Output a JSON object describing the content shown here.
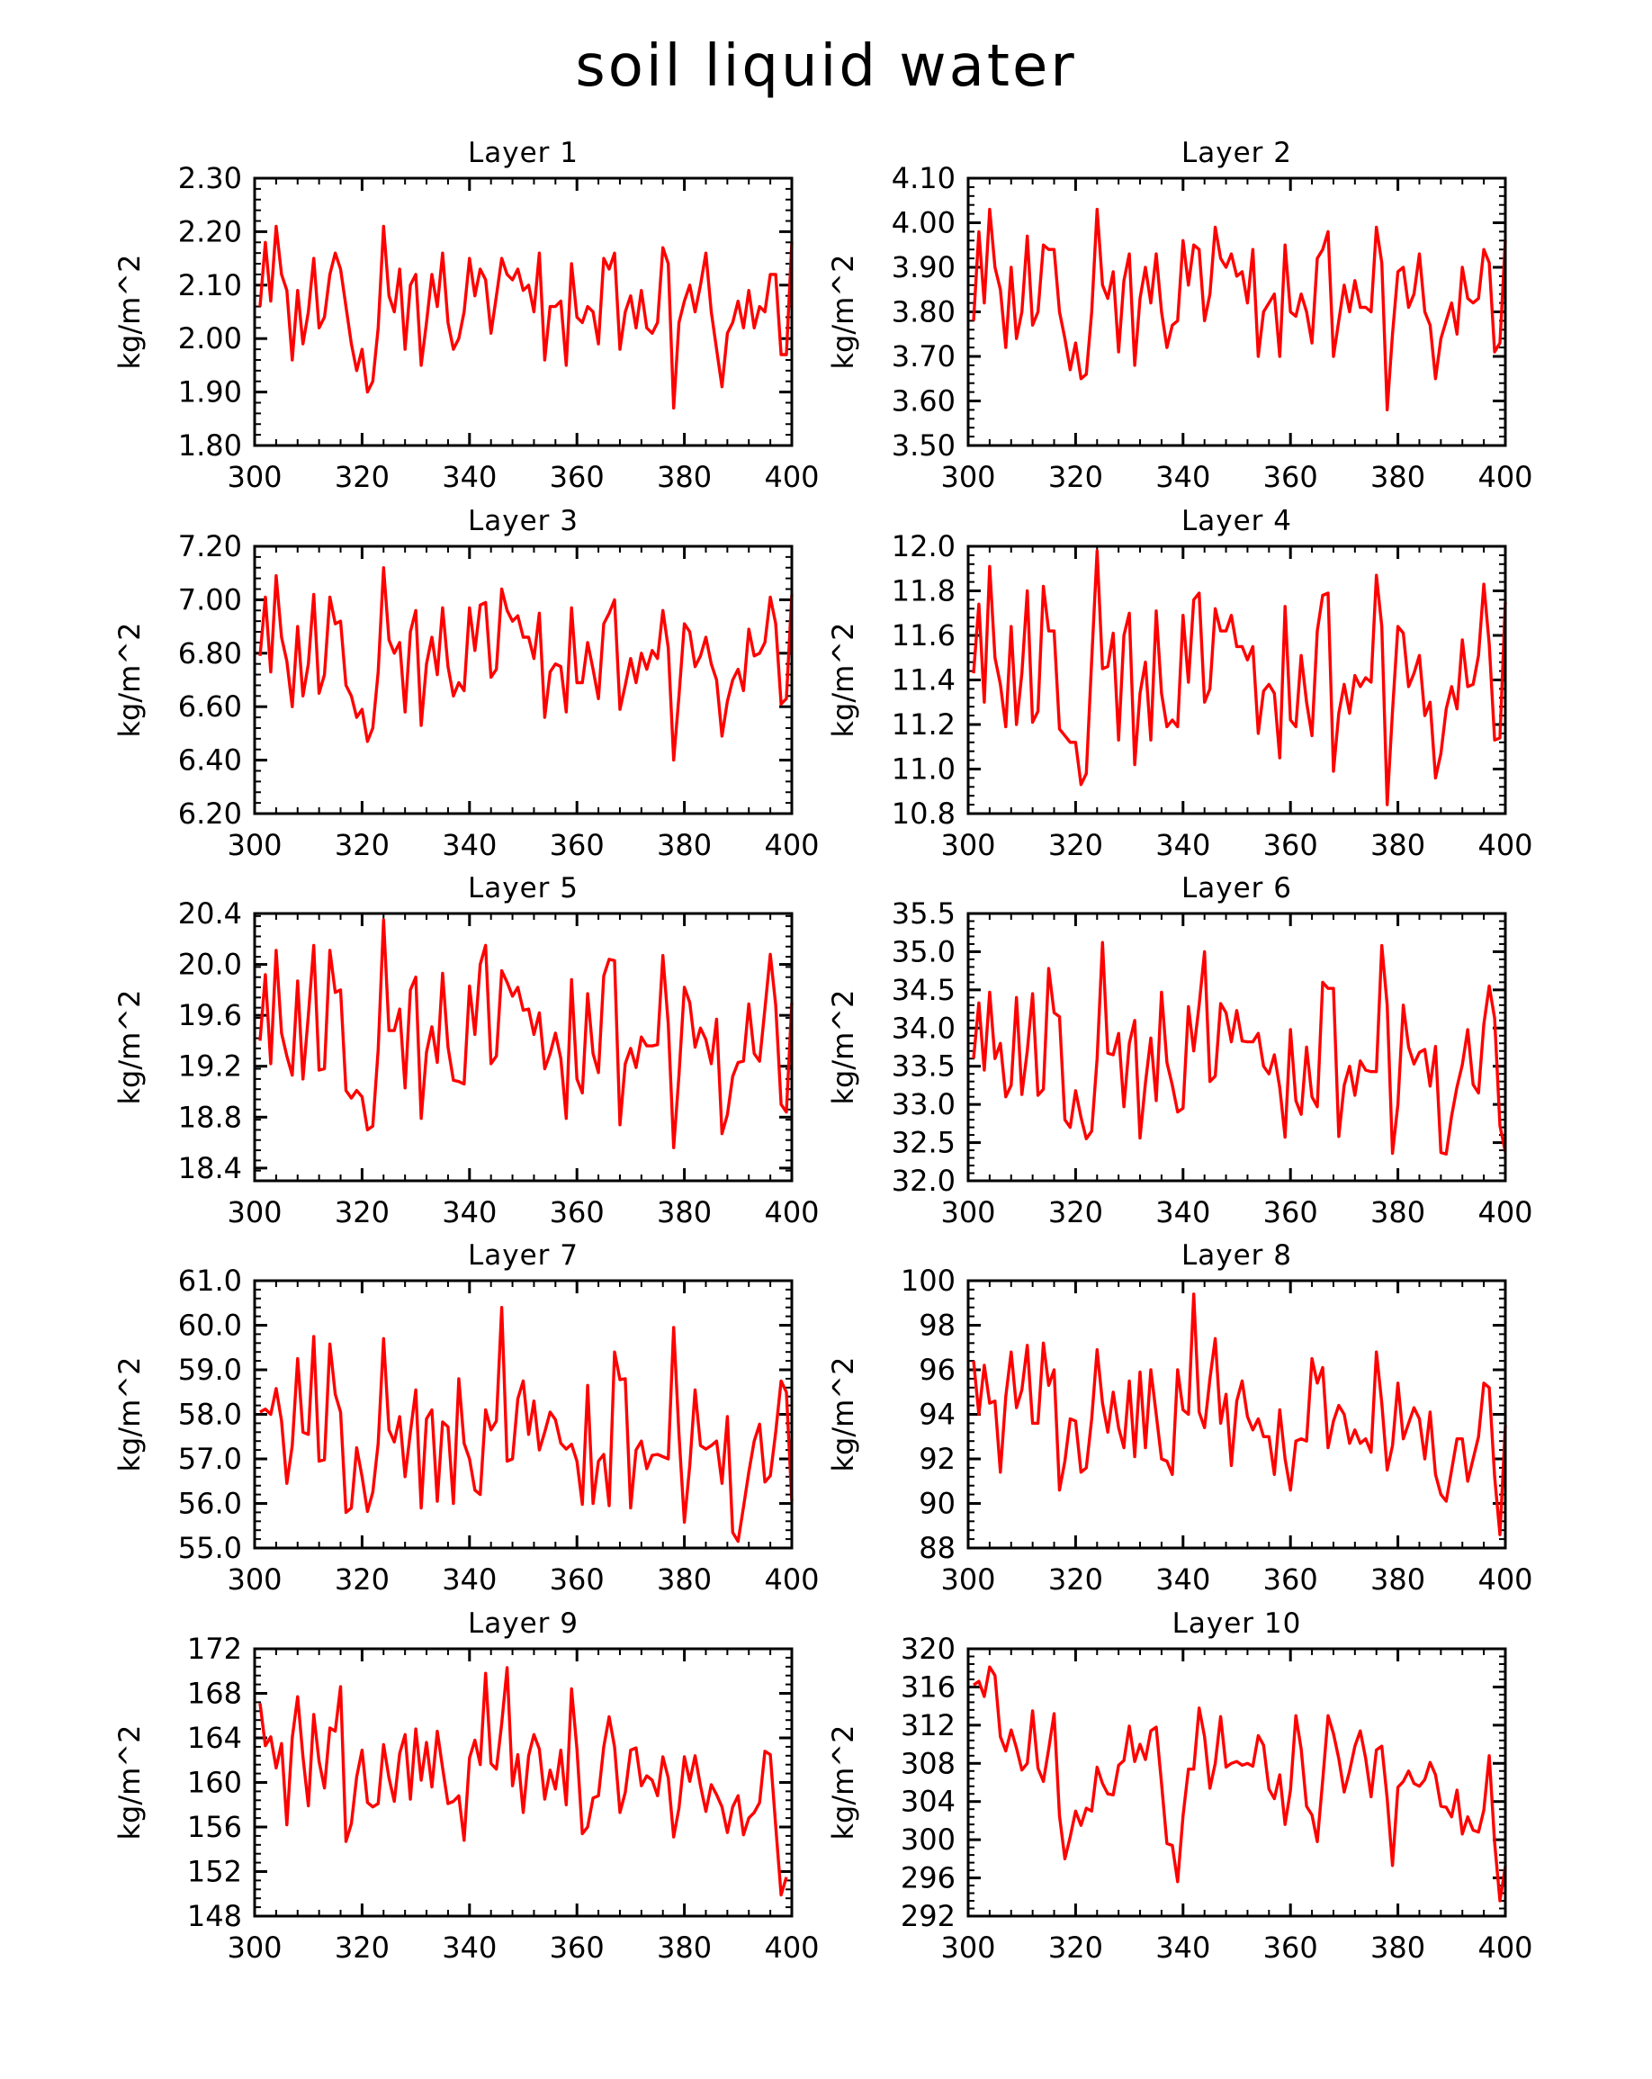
{
  "title": "soil liquid water",
  "footer": "",
  "series_color": "#ff0000",
  "chart_data": [
    {
      "type": "line",
      "title": "Layer 1",
      "ylabel": "kg/m^2",
      "xlim": [
        300,
        400
      ],
      "xticks": [
        300,
        320,
        340,
        360,
        380,
        400
      ],
      "ylim": [
        1.8,
        2.3
      ],
      "yticks": [
        "1.80",
        "1.90",
        "2.00",
        "2.10",
        "2.20",
        "2.30"
      ],
      "x_start": 301,
      "values": [
        2.06,
        2.18,
        2.07,
        2.21,
        2.12,
        2.09,
        1.96,
        2.09,
        1.99,
        2.05,
        2.15,
        2.02,
        2.04,
        2.12,
        2.16,
        2.13,
        2.06,
        1.99,
        1.94,
        1.98,
        1.9,
        1.92,
        2.02,
        2.21,
        2.08,
        2.05,
        2.13,
        1.98,
        2.1,
        2.12,
        1.95,
        2.03,
        2.12,
        2.06,
        2.16,
        2.03,
        1.98,
        2.0,
        2.05,
        2.15,
        2.08,
        2.13,
        2.11,
        2.01,
        2.08,
        2.15,
        2.12,
        2.11,
        2.13,
        2.09,
        2.1,
        2.05,
        2.16,
        1.96,
        2.06,
        2.06,
        2.07,
        1.95,
        2.14,
        2.04,
        2.03,
        2.06,
        2.05,
        1.99,
        2.15,
        2.13,
        2.16,
        1.98,
        2.05,
        2.08,
        2.02,
        2.09,
        2.02,
        2.01,
        2.03,
        2.17,
        2.14,
        1.87,
        2.03,
        2.07,
        2.1,
        2.05,
        2.1,
        2.16,
        2.05,
        1.98,
        1.91,
        2.01,
        2.03,
        2.07,
        2.02,
        2.09,
        2.02,
        2.06,
        2.05,
        2.12,
        2.12,
        1.97,
        1.97,
        2.18
      ]
    },
    {
      "type": "line",
      "title": "Layer 2",
      "ylabel": "kg/m^2",
      "xlim": [
        300,
        400
      ],
      "xticks": [
        300,
        320,
        340,
        360,
        380,
        400
      ],
      "ylim": [
        3.5,
        4.1
      ],
      "yticks": [
        "3.50",
        "3.60",
        "3.70",
        "3.80",
        "3.90",
        "4.00",
        "4.10"
      ],
      "x_start": 301,
      "values": [
        3.78,
        3.98,
        3.82,
        4.03,
        3.9,
        3.85,
        3.72,
        3.9,
        3.74,
        3.8,
        3.97,
        3.77,
        3.8,
        3.95,
        3.94,
        3.94,
        3.8,
        3.74,
        3.67,
        3.73,
        3.65,
        3.66,
        3.8,
        4.03,
        3.86,
        3.83,
        3.89,
        3.71,
        3.87,
        3.93,
        3.68,
        3.83,
        3.9,
        3.82,
        3.93,
        3.8,
        3.72,
        3.77,
        3.78,
        3.96,
        3.86,
        3.95,
        3.94,
        3.78,
        3.84,
        3.99,
        3.92,
        3.9,
        3.93,
        3.88,
        3.89,
        3.82,
        3.94,
        3.7,
        3.8,
        3.82,
        3.84,
        3.7,
        3.95,
        3.8,
        3.79,
        3.84,
        3.8,
        3.73,
        3.92,
        3.94,
        3.98,
        3.7,
        3.78,
        3.86,
        3.8,
        3.87,
        3.81,
        3.81,
        3.8,
        3.99,
        3.91,
        3.58,
        3.75,
        3.89,
        3.9,
        3.81,
        3.84,
        3.93,
        3.8,
        3.77,
        3.65,
        3.74,
        3.78,
        3.82,
        3.75,
        3.9,
        3.83,
        3.82,
        3.83,
        3.94,
        3.91,
        3.71,
        3.73,
        3.96
      ]
    },
    {
      "type": "line",
      "title": "Layer 3",
      "ylabel": "kg/m^2",
      "xlim": [
        300,
        400
      ],
      "xticks": [
        300,
        320,
        340,
        360,
        380,
        400
      ],
      "ylim": [
        6.2,
        7.2
      ],
      "yticks": [
        "6.20",
        "6.40",
        "6.60",
        "6.80",
        "7.00",
        "7.20"
      ],
      "x_start": 301,
      "values": [
        6.79,
        7.01,
        6.73,
        7.09,
        6.86,
        6.77,
        6.6,
        6.9,
        6.64,
        6.76,
        7.02,
        6.65,
        6.72,
        7.01,
        6.91,
        6.92,
        6.68,
        6.64,
        6.56,
        6.59,
        6.47,
        6.52,
        6.73,
        7.12,
        6.85,
        6.8,
        6.84,
        6.58,
        6.88,
        6.96,
        6.53,
        6.76,
        6.86,
        6.72,
        6.97,
        6.75,
        6.64,
        6.69,
        6.66,
        6.97,
        6.81,
        6.98,
        6.99,
        6.71,
        6.74,
        7.04,
        6.96,
        6.92,
        6.94,
        6.86,
        6.86,
        6.78,
        6.95,
        6.56,
        6.73,
        6.76,
        6.75,
        6.58,
        6.97,
        6.69,
        6.69,
        6.84,
        6.74,
        6.63,
        6.91,
        6.95,
        7.0,
        6.59,
        6.68,
        6.78,
        6.69,
        6.8,
        6.74,
        6.81,
        6.78,
        6.96,
        6.82,
        6.4,
        6.64,
        6.91,
        6.88,
        6.75,
        6.79,
        6.86,
        6.76,
        6.7,
        6.49,
        6.62,
        6.7,
        6.74,
        6.66,
        6.89,
        6.79,
        6.8,
        6.84,
        7.01,
        6.91,
        6.61,
        6.63,
        7.02
      ]
    },
    {
      "type": "line",
      "title": "Layer 4",
      "ylabel": "kg/m^2",
      "xlim": [
        300,
        400
      ],
      "xticks": [
        300,
        320,
        340,
        360,
        380,
        400
      ],
      "ylim": [
        10.8,
        12.0
      ],
      "yticks": [
        "10.8",
        "11.0",
        "11.2",
        "11.4",
        "11.6",
        "11.8",
        "12.0"
      ],
      "x_start": 301,
      "values": [
        11.43,
        11.74,
        11.3,
        11.91,
        11.5,
        11.38,
        11.19,
        11.64,
        11.2,
        11.43,
        11.8,
        11.21,
        11.26,
        11.82,
        11.62,
        11.62,
        11.18,
        11.15,
        11.12,
        11.12,
        10.93,
        10.98,
        11.49,
        11.98,
        11.45,
        11.46,
        11.61,
        11.13,
        11.6,
        11.7,
        11.02,
        11.34,
        11.48,
        11.13,
        11.71,
        11.34,
        11.19,
        11.22,
        11.19,
        11.69,
        11.39,
        11.76,
        11.79,
        11.3,
        11.36,
        11.72,
        11.62,
        11.62,
        11.69,
        11.55,
        11.55,
        11.49,
        11.55,
        11.16,
        11.35,
        11.38,
        11.34,
        11.05,
        11.73,
        11.22,
        11.19,
        11.51,
        11.3,
        11.15,
        11.62,
        11.78,
        11.79,
        10.99,
        11.25,
        11.38,
        11.25,
        11.42,
        11.37,
        11.41,
        11.39,
        11.87,
        11.64,
        10.84,
        11.26,
        11.64,
        11.61,
        11.37,
        11.43,
        11.51,
        11.24,
        11.3,
        10.96,
        11.07,
        11.27,
        11.37,
        11.27,
        11.58,
        11.37,
        11.38,
        11.51,
        11.83,
        11.56,
        11.13,
        11.14,
        11.75
      ]
    },
    {
      "type": "line",
      "title": "Layer 5",
      "ylabel": "kg/m^2",
      "xlim": [
        300,
        400
      ],
      "xticks": [
        300,
        320,
        340,
        360,
        380,
        400
      ],
      "ylim": [
        18.3,
        20.4
      ],
      "yticks": [
        "18.4",
        "18.8",
        "19.2",
        "19.6",
        "20.0",
        "20.4"
      ],
      "x_start": 301,
      "values": [
        19.4,
        19.92,
        19.22,
        20.11,
        19.46,
        19.28,
        19.13,
        19.87,
        19.1,
        19.6,
        20.15,
        19.17,
        19.18,
        20.11,
        19.78,
        19.8,
        19.01,
        18.95,
        19.01,
        18.96,
        18.7,
        18.73,
        19.33,
        20.35,
        19.48,
        19.48,
        19.65,
        19.03,
        19.8,
        19.9,
        18.79,
        19.31,
        19.51,
        19.23,
        19.93,
        19.35,
        19.09,
        19.08,
        19.06,
        19.83,
        19.45,
        20.0,
        20.15,
        19.22,
        19.28,
        19.95,
        19.86,
        19.75,
        19.82,
        19.64,
        19.65,
        19.45,
        19.62,
        19.18,
        19.3,
        19.46,
        19.26,
        18.79,
        19.88,
        19.1,
        18.99,
        19.77,
        19.3,
        19.15,
        19.91,
        20.04,
        20.03,
        18.74,
        19.22,
        19.34,
        19.19,
        19.43,
        19.36,
        19.36,
        19.37,
        20.07,
        19.53,
        18.56,
        19.13,
        19.82,
        19.7,
        19.35,
        19.5,
        19.41,
        19.22,
        19.57,
        18.67,
        18.82,
        19.12,
        19.23,
        19.24,
        19.69,
        19.3,
        19.24,
        19.65,
        20.08,
        19.68,
        18.9,
        18.84,
        19.7
      ]
    },
    {
      "type": "line",
      "title": "Layer 6",
      "ylabel": "kg/m^2",
      "xlim": [
        300,
        400
      ],
      "xticks": [
        300,
        320,
        340,
        360,
        380,
        400
      ],
      "ylim": [
        32.0,
        35.5
      ],
      "yticks": [
        "32.0",
        "32.5",
        "33.0",
        "33.5",
        "34.0",
        "34.5",
        "35.0",
        "35.5"
      ],
      "x_start": 301,
      "values": [
        33.6,
        34.33,
        33.45,
        34.47,
        33.6,
        33.8,
        33.1,
        33.25,
        34.4,
        33.13,
        33.7,
        34.45,
        33.12,
        33.2,
        34.78,
        34.2,
        34.15,
        32.8,
        32.7,
        33.18,
        32.83,
        32.55,
        32.65,
        33.6,
        35.12,
        33.67,
        33.65,
        33.93,
        32.97,
        33.8,
        34.1,
        32.56,
        33.28,
        33.87,
        33.05,
        34.47,
        33.55,
        33.25,
        32.9,
        32.95,
        34.28,
        33.7,
        34.3,
        35.0,
        33.3,
        33.37,
        34.32,
        34.2,
        33.82,
        34.23,
        33.83,
        33.82,
        33.82,
        33.93,
        33.5,
        33.4,
        33.65,
        33.22,
        32.57,
        33.98,
        33.05,
        32.87,
        33.75,
        33.1,
        32.97,
        34.6,
        34.52,
        34.52,
        32.58,
        33.25,
        33.5,
        33.12,
        33.57,
        33.45,
        33.43,
        33.43,
        35.08,
        34.3,
        32.36,
        33.0,
        34.3,
        33.75,
        33.53,
        33.68,
        33.72,
        33.24,
        33.76,
        32.37,
        32.35,
        32.85,
        33.23,
        33.52,
        33.98,
        33.26,
        33.15,
        34.05,
        34.55,
        34.13,
        32.72,
        32.38
      ]
    },
    {
      "type": "line",
      "title": "Layer 7",
      "ylabel": "kg/m^2",
      "xlim": [
        300,
        400
      ],
      "xticks": [
        300,
        320,
        340,
        360,
        380,
        400
      ],
      "ylim": [
        55.0,
        61.0
      ],
      "yticks": [
        "55.0",
        "56.0",
        "57.0",
        "58.0",
        "59.0",
        "60.0",
        "61.0"
      ],
      "x_start": 301,
      "values": [
        58.05,
        58.12,
        58.0,
        58.58,
        57.85,
        56.45,
        57.3,
        59.25,
        57.6,
        57.55,
        59.75,
        56.95,
        56.98,
        59.58,
        58.45,
        58.05,
        55.8,
        55.9,
        57.25,
        56.6,
        55.82,
        56.25,
        57.35,
        59.7,
        57.65,
        57.38,
        57.95,
        56.6,
        57.6,
        58.55,
        55.9,
        57.9,
        58.1,
        56.05,
        57.83,
        57.72,
        56.0,
        58.8,
        57.35,
        57.0,
        56.3,
        56.2,
        58.1,
        57.65,
        57.85,
        60.4,
        56.95,
        57.0,
        58.35,
        58.75,
        57.55,
        58.3,
        57.2,
        57.6,
        58.05,
        57.88,
        57.35,
        57.22,
        57.33,
        56.95,
        55.98,
        58.65,
        56.0,
        56.95,
        57.1,
        55.95,
        59.4,
        58.78,
        58.8,
        55.9,
        57.2,
        57.4,
        56.78,
        57.08,
        57.1,
        57.05,
        57.0,
        59.95,
        57.55,
        55.58,
        56.85,
        58.55,
        57.3,
        57.22,
        57.3,
        57.4,
        56.45,
        57.95,
        55.35,
        55.15,
        55.92,
        56.7,
        57.4,
        57.78,
        56.48,
        56.62,
        57.6,
        58.75,
        58.5,
        56.05
      ]
    },
    {
      "type": "line",
      "title": "Layer 8",
      "ylabel": "kg/m^2",
      "xlim": [
        300,
        400
      ],
      "xticks": [
        300,
        320,
        340,
        360,
        380,
        400
      ],
      "ylim": [
        88,
        100
      ],
      "yticks": [
        "88",
        "90",
        "92",
        "94",
        "96",
        "98",
        "100"
      ],
      "x_start": 301,
      "values": [
        96.4,
        94.0,
        96.2,
        94.5,
        94.6,
        91.4,
        94.8,
        96.8,
        94.3,
        95.1,
        97.1,
        93.6,
        93.6,
        97.2,
        95.3,
        96.0,
        90.6,
        91.9,
        93.8,
        93.7,
        91.4,
        91.6,
        93.8,
        96.9,
        94.5,
        93.2,
        95.0,
        93.4,
        92.5,
        95.5,
        92.1,
        95.9,
        92.5,
        96.0,
        94.0,
        92.0,
        91.9,
        91.3,
        96.0,
        94.2,
        94.0,
        99.4,
        94.1,
        93.4,
        95.6,
        97.4,
        93.6,
        94.9,
        91.7,
        94.6,
        95.5,
        93.9,
        93.3,
        93.8,
        93.0,
        93.0,
        91.3,
        94.2,
        92.0,
        90.6,
        92.8,
        92.9,
        92.8,
        96.5,
        95.4,
        96.1,
        92.5,
        93.7,
        94.4,
        94.0,
        92.7,
        93.3,
        92.7,
        92.9,
        92.3,
        96.8,
        94.5,
        91.5,
        92.6,
        95.4,
        92.9,
        93.6,
        94.3,
        93.8,
        92.0,
        94.1,
        91.3,
        90.4,
        90.1,
        91.5,
        92.9,
        92.9,
        91.0,
        92.0,
        93.0,
        95.4,
        95.2,
        91.2,
        88.6,
        93.5
      ]
    },
    {
      "type": "line",
      "title": "Layer 9",
      "ylabel": "kg/m^2",
      "xlim": [
        300,
        400
      ],
      "xticks": [
        300,
        320,
        340,
        360,
        380,
        400
      ],
      "ylim": [
        148,
        172
      ],
      "yticks": [
        "148",
        "152",
        "156",
        "160",
        "164",
        "168",
        "172"
      ],
      "x_start": 301,
      "values": [
        167.1,
        163.3,
        164.1,
        161.3,
        163.5,
        156.2,
        164.0,
        167.7,
        162.3,
        157.9,
        166.1,
        161.9,
        159.5,
        164.9,
        164.6,
        168.6,
        154.7,
        156.3,
        160.5,
        162.9,
        158.2,
        157.8,
        158.1,
        163.4,
        160.4,
        158.3,
        162.6,
        164.3,
        158.5,
        164.8,
        160.2,
        163.6,
        159.6,
        164.6,
        161.3,
        158.1,
        158.3,
        158.8,
        154.8,
        162.2,
        163.8,
        161.6,
        169.8,
        161.7,
        161.2,
        165.3,
        170.3,
        159.7,
        162.5,
        157.3,
        162.4,
        164.3,
        163.0,
        158.5,
        161.1,
        159.4,
        162.9,
        158.0,
        168.4,
        163.0,
        155.4,
        156.0,
        158.6,
        158.8,
        163.2,
        165.9,
        163.2,
        157.3,
        159.1,
        162.9,
        163.1,
        159.7,
        160.6,
        160.2,
        158.8,
        162.3,
        160.4,
        155.1,
        157.7,
        162.3,
        160.1,
        162.4,
        159.7,
        157.4,
        159.8,
        158.9,
        157.8,
        155.5,
        157.8,
        158.8,
        155.3,
        156.8,
        157.3,
        158.2,
        162.8,
        162.5,
        156.1,
        149.9,
        151.5
      ]
    },
    {
      "type": "line",
      "title": "Layer 10",
      "ylabel": "kg/m^2",
      "xlim": [
        300,
        400
      ],
      "xticks": [
        300,
        320,
        340,
        360,
        380,
        400
      ],
      "ylim": [
        292,
        320
      ],
      "yticks": [
        "292",
        "296",
        "300",
        "304",
        "308",
        "312",
        "316",
        "320"
      ],
      "x_start": 301,
      "values": [
        316.2,
        316.6,
        315.0,
        318.1,
        317.2,
        310.8,
        309.3,
        311.5,
        309.6,
        307.3,
        308.0,
        313.5,
        307.5,
        306.1,
        309.5,
        313.2,
        302.5,
        298.0,
        300.3,
        303.0,
        301.5,
        303.3,
        303.0,
        307.6,
        305.9,
        304.8,
        304.7,
        307.8,
        308.3,
        311.9,
        308.2,
        310.0,
        308.4,
        311.4,
        311.8,
        305.9,
        299.6,
        299.4,
        295.6,
        302.5,
        307.4,
        307.4,
        313.8,
        310.8,
        305.4,
        308.0,
        312.9,
        307.6,
        308.0,
        308.2,
        307.8,
        308.0,
        307.7,
        310.9,
        309.9,
        305.3,
        304.3,
        306.8,
        301.6,
        305.2,
        313.0,
        309.5,
        303.5,
        302.6,
        299.8,
        306.2,
        313.0,
        311.1,
        308.5,
        305.0,
        307.2,
        309.8,
        311.4,
        308.5,
        304.5,
        309.4,
        309.8,
        304.3,
        297.3,
        305.5,
        306.1,
        307.2,
        305.9,
        305.6,
        306.3,
        308.1,
        306.8,
        303.5,
        303.4,
        302.4,
        305.2,
        300.6,
        302.4,
        301.0,
        300.8,
        303.1,
        308.8,
        299.7,
        293.6,
        297.2
      ]
    }
  ]
}
